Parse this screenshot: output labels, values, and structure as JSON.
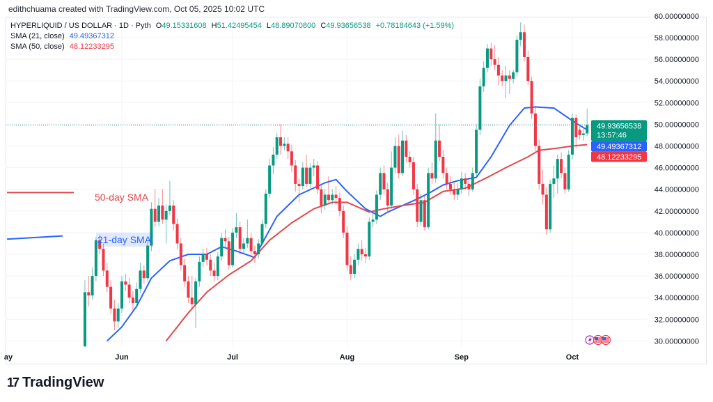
{
  "attribution": "edithchuama created with TradingView.com, Oct 05, 2025 10:02 UTC",
  "legend": {
    "symbol": "HYPERLIQUID / US DOLLAR · 1D · Pyth",
    "open_label": "O",
    "open": "49.15331608",
    "high_label": "H",
    "high": "51.42495454",
    "low_label": "L",
    "low": "48.89070800",
    "close_label": "C",
    "close": "49.93656538",
    "change": "+0.78184643 (+1.59%)",
    "sma21_label": "SMA (21, close)",
    "sma21_value": "49.49367312",
    "sma50_label": "SMA (50, close)",
    "sma50_value": "48.12233295"
  },
  "badges": {
    "last_price": "49.93656538",
    "countdown": "13:57:46",
    "sma21": "49.49367312",
    "sma50": "48.12233295"
  },
  "annotations": {
    "sma50_text": "50-day SMA",
    "sma21_text": "21-day SMA"
  },
  "logo": {
    "mark": "17",
    "text": "TradingView"
  },
  "event_icons": [
    "lightning-icon",
    "us-flag-icon",
    "us-flag-icon"
  ],
  "colors": {
    "up": "#089981",
    "down": "#f23645",
    "sma21": "#2962ff",
    "sma50": "#e0474c",
    "grid": "#f0f3fa"
  },
  "chart_data": {
    "type": "candlestick",
    "title": "HYPERLIQUID / US DOLLAR · 1D · Pyth",
    "ylim": [
      30,
      60
    ],
    "y_ticks": [
      "30.00000000",
      "32.00000000",
      "34.00000000",
      "36.00000000",
      "38.00000000",
      "40.00000000",
      "42.00000000",
      "44.00000000",
      "46.00000000",
      "48.00000000",
      "50.00000000",
      "52.00000000",
      "54.00000000",
      "56.00000000",
      "58.00000000",
      "60.00000000"
    ],
    "x_ticks": [
      {
        "label": "ay",
        "date": "2025-05-01"
      },
      {
        "label": "Jun",
        "date": "2025-06-01"
      },
      {
        "label": "Jul",
        "date": "2025-07-01"
      },
      {
        "label": "Aug",
        "date": "2025-08-01"
      },
      {
        "label": "Sep",
        "date": "2025-09-01"
      },
      {
        "label": "Oct",
        "date": "2025-10-01"
      }
    ],
    "grid": true,
    "candles_fields": [
      "date",
      "open",
      "high",
      "low",
      "close"
    ],
    "candles": [
      [
        "2025-05-22",
        29.5,
        35.6,
        29.3,
        34.5
      ],
      [
        "2025-05-23",
        34.5,
        36.0,
        33.2,
        34.2
      ],
      [
        "2025-05-24",
        34.2,
        36.8,
        33.8,
        36.0
      ],
      [
        "2025-05-25",
        36.0,
        39.6,
        35.5,
        39.3
      ],
      [
        "2025-05-26",
        39.3,
        39.8,
        38.0,
        38.5
      ],
      [
        "2025-05-27",
        38.5,
        39.0,
        36.0,
        36.5
      ],
      [
        "2025-05-28",
        36.5,
        37.2,
        34.5,
        35.0
      ],
      [
        "2025-05-29",
        35.0,
        35.6,
        32.5,
        33.0
      ],
      [
        "2025-05-30",
        33.0,
        33.8,
        31.0,
        31.8
      ],
      [
        "2025-05-31",
        31.8,
        33.5,
        31.2,
        33.0
      ],
      [
        "2025-06-01",
        33.0,
        36.0,
        32.6,
        35.5
      ],
      [
        "2025-06-02",
        35.5,
        36.2,
        34.6,
        35.2
      ],
      [
        "2025-06-03",
        35.2,
        35.8,
        33.5,
        34.0
      ],
      [
        "2025-06-04",
        34.0,
        34.6,
        32.8,
        33.5
      ],
      [
        "2025-06-05",
        33.5,
        35.4,
        33.0,
        34.8
      ],
      [
        "2025-06-06",
        34.8,
        37.2,
        34.4,
        36.5
      ],
      [
        "2025-06-07",
        36.5,
        37.0,
        35.3,
        35.8
      ],
      [
        "2025-06-08",
        35.8,
        39.2,
        35.5,
        38.8
      ],
      [
        "2025-06-09",
        38.8,
        42.8,
        38.3,
        42.2
      ],
      [
        "2025-06-10",
        42.2,
        44.0,
        40.5,
        41.0
      ],
      [
        "2025-06-11",
        41.0,
        43.2,
        40.6,
        42.5
      ],
      [
        "2025-06-12",
        42.5,
        44.0,
        40.8,
        41.2
      ],
      [
        "2025-06-13",
        41.2,
        42.6,
        39.0,
        42.0
      ],
      [
        "2025-06-14",
        42.0,
        44.8,
        41.6,
        42.5
      ],
      [
        "2025-06-15",
        42.5,
        43.0,
        40.2,
        40.8
      ],
      [
        "2025-06-16",
        40.8,
        41.3,
        38.5,
        39.0
      ],
      [
        "2025-06-17",
        39.0,
        39.5,
        36.5,
        37.0
      ],
      [
        "2025-06-18",
        37.0,
        37.6,
        35.0,
        35.5
      ],
      [
        "2025-06-19",
        35.5,
        36.0,
        33.5,
        34.0
      ],
      [
        "2025-06-20",
        34.0,
        36.0,
        33.0,
        33.4
      ],
      [
        "2025-06-21",
        33.4,
        35.8,
        31.2,
        35.5
      ],
      [
        "2025-06-22",
        35.5,
        37.8,
        35.0,
        37.3
      ],
      [
        "2025-06-23",
        37.3,
        38.5,
        36.8,
        38.0
      ],
      [
        "2025-06-24",
        38.0,
        38.6,
        37.0,
        37.5
      ],
      [
        "2025-06-25",
        37.5,
        38.0,
        36.0,
        36.5
      ],
      [
        "2025-06-26",
        36.5,
        37.2,
        35.5,
        36.0
      ],
      [
        "2025-06-27",
        36.0,
        38.2,
        35.6,
        37.8
      ],
      [
        "2025-06-28",
        37.8,
        40.0,
        37.4,
        39.5
      ],
      [
        "2025-06-29",
        39.5,
        40.3,
        38.7,
        39.2
      ],
      [
        "2025-06-30",
        39.2,
        39.6,
        36.6,
        37.0
      ],
      [
        "2025-07-01",
        37.0,
        40.4,
        36.8,
        40.0
      ],
      [
        "2025-07-02",
        40.0,
        41.8,
        39.5,
        40.5
      ],
      [
        "2025-07-03",
        40.5,
        41.0,
        38.0,
        38.5
      ],
      [
        "2025-07-04",
        38.5,
        39.5,
        38.1,
        39.0
      ],
      [
        "2025-07-05",
        39.0,
        41.2,
        38.6,
        39.5
      ],
      [
        "2025-07-06",
        39.5,
        40.0,
        37.8,
        38.3
      ],
      [
        "2025-07-07",
        38.3,
        38.8,
        37.2,
        38.0
      ],
      [
        "2025-07-08",
        38.0,
        39.4,
        37.6,
        39.0
      ],
      [
        "2025-07-09",
        39.0,
        41.2,
        38.8,
        40.8
      ],
      [
        "2025-07-10",
        40.8,
        44.0,
        40.4,
        43.6
      ],
      [
        "2025-07-11",
        43.6,
        46.8,
        43.2,
        46.2
      ],
      [
        "2025-07-12",
        46.2,
        47.9,
        45.4,
        47.2
      ],
      [
        "2025-07-13",
        47.2,
        49.2,
        46.8,
        48.8
      ],
      [
        "2025-07-14",
        48.8,
        50.0,
        47.2,
        48.0
      ],
      [
        "2025-07-15",
        48.0,
        48.8,
        47.6,
        48.2
      ],
      [
        "2025-07-16",
        48.2,
        48.8,
        46.8,
        47.5
      ],
      [
        "2025-07-17",
        47.5,
        48.1,
        45.6,
        46.2
      ],
      [
        "2025-07-18",
        46.2,
        46.7,
        43.8,
        44.5
      ],
      [
        "2025-07-19",
        44.5,
        45.0,
        42.8,
        44.3
      ],
      [
        "2025-07-20",
        44.3,
        46.5,
        44.0,
        46.0
      ],
      [
        "2025-07-21",
        46.0,
        47.2,
        44.2,
        44.5
      ],
      [
        "2025-07-22",
        44.5,
        46.4,
        44.1,
        46.0
      ],
      [
        "2025-07-23",
        46.0,
        46.8,
        45.2,
        46.2
      ],
      [
        "2025-07-24",
        46.2,
        46.6,
        43.6,
        44.0
      ],
      [
        "2025-07-25",
        44.0,
        44.5,
        41.8,
        42.5
      ],
      [
        "2025-07-26",
        42.5,
        44.0,
        42.1,
        43.5
      ],
      [
        "2025-07-27",
        43.5,
        45.2,
        42.6,
        43.0
      ],
      [
        "2025-07-28",
        43.0,
        44.0,
        42.6,
        43.5
      ],
      [
        "2025-07-29",
        43.5,
        44.3,
        42.6,
        43.2
      ],
      [
        "2025-07-30",
        43.2,
        43.7,
        41.5,
        42.0
      ],
      [
        "2025-07-31",
        42.0,
        42.5,
        39.5,
        40.0
      ],
      [
        "2025-08-01",
        40.0,
        40.6,
        36.5,
        37.0
      ],
      [
        "2025-08-02",
        37.0,
        37.8,
        35.6,
        36.2
      ],
      [
        "2025-08-03",
        36.2,
        38.0,
        35.8,
        37.5
      ],
      [
        "2025-08-04",
        37.5,
        39.0,
        37.0,
        38.5
      ],
      [
        "2025-08-05",
        38.5,
        39.3,
        37.4,
        38.0
      ],
      [
        "2025-08-06",
        38.0,
        38.6,
        37.2,
        37.8
      ],
      [
        "2025-08-07",
        37.8,
        41.4,
        37.5,
        41.0
      ],
      [
        "2025-08-08",
        41.0,
        41.8,
        40.5,
        41.2
      ],
      [
        "2025-08-09",
        41.2,
        43.9,
        40.8,
        43.5
      ],
      [
        "2025-08-10",
        43.5,
        46.0,
        43.0,
        45.5
      ],
      [
        "2025-08-11",
        45.5,
        46.2,
        43.5,
        44.0
      ],
      [
        "2025-08-12",
        44.0,
        44.6,
        42.0,
        42.5
      ],
      [
        "2025-08-13",
        42.5,
        47.5,
        42.2,
        46.0
      ],
      [
        "2025-08-14",
        46.0,
        48.8,
        45.5,
        48.0
      ],
      [
        "2025-08-15",
        48.0,
        49.0,
        45.0,
        45.5
      ],
      [
        "2025-08-16",
        45.5,
        49.4,
        45.2,
        48.5
      ],
      [
        "2025-08-17",
        48.5,
        49.0,
        46.5,
        47.0
      ],
      [
        "2025-08-18",
        47.0,
        47.5,
        46.0,
        46.5
      ],
      [
        "2025-08-19",
        46.5,
        47.0,
        43.5,
        44.0
      ],
      [
        "2025-08-20",
        44.0,
        44.5,
        40.5,
        41.0
      ],
      [
        "2025-08-21",
        41.0,
        43.6,
        40.6,
        43.0
      ],
      [
        "2025-08-22",
        43.0,
        43.4,
        40.2,
        40.5
      ],
      [
        "2025-08-23",
        40.5,
        46.0,
        40.3,
        45.5
      ],
      [
        "2025-08-24",
        45.5,
        46.5,
        44.5,
        45.0
      ],
      [
        "2025-08-25",
        45.0,
        51.0,
        44.6,
        48.5
      ],
      [
        "2025-08-26",
        48.5,
        50.0,
        46.6,
        47.0
      ],
      [
        "2025-08-27",
        47.0,
        47.6,
        45.0,
        45.5
      ],
      [
        "2025-08-28",
        45.5,
        46.0,
        44.0,
        44.5
      ],
      [
        "2025-08-29",
        44.5,
        45.2,
        43.5,
        44.0
      ],
      [
        "2025-08-30",
        44.0,
        44.6,
        43.0,
        43.5
      ],
      [
        "2025-08-31",
        43.5,
        44.6,
        43.0,
        44.0
      ],
      [
        "2025-09-01",
        44.0,
        45.6,
        43.6,
        45.0
      ],
      [
        "2025-09-02",
        45.0,
        45.5,
        44.0,
        44.5
      ],
      [
        "2025-09-03",
        44.5,
        45.0,
        43.4,
        44.0
      ],
      [
        "2025-09-04",
        44.0,
        46.0,
        43.8,
        45.5
      ],
      [
        "2025-09-05",
        45.5,
        50.0,
        45.2,
        49.5
      ],
      [
        "2025-09-06",
        49.5,
        54.2,
        49.0,
        53.5
      ],
      [
        "2025-09-07",
        53.5,
        55.8,
        53.0,
        55.2
      ],
      [
        "2025-09-08",
        55.2,
        57.4,
        54.8,
        57.0
      ],
      [
        "2025-09-09",
        57.0,
        57.5,
        55.4,
        56.0
      ],
      [
        "2025-09-10",
        56.0,
        57.3,
        55.0,
        55.5
      ],
      [
        "2025-09-11",
        55.5,
        56.2,
        53.6,
        54.5
      ],
      [
        "2025-09-12",
        54.5,
        55.0,
        53.5,
        54.0
      ],
      [
        "2025-09-13",
        54.0,
        55.4,
        52.4,
        54.5
      ],
      [
        "2025-09-14",
        54.5,
        55.0,
        52.8,
        54.2
      ],
      [
        "2025-09-15",
        54.2,
        55.0,
        53.8,
        54.8
      ],
      [
        "2025-09-16",
        54.8,
        58.2,
        54.4,
        57.8
      ],
      [
        "2025-09-17",
        57.8,
        59.4,
        57.2,
        58.5
      ],
      [
        "2025-09-18",
        58.5,
        59.2,
        55.8,
        56.2
      ],
      [
        "2025-09-19",
        56.2,
        56.8,
        53.6,
        54.0
      ],
      [
        "2025-09-20",
        54.0,
        54.4,
        50.5,
        51.0
      ],
      [
        "2025-09-21",
        51.0,
        51.5,
        47.5,
        48.0
      ],
      [
        "2025-09-22",
        48.0,
        48.6,
        44.0,
        44.5
      ],
      [
        "2025-09-23",
        44.5,
        45.8,
        42.6,
        43.5
      ],
      [
        "2025-09-24",
        43.5,
        44.2,
        39.8,
        40.3
      ],
      [
        "2025-09-25",
        40.3,
        44.9,
        40.0,
        44.5
      ],
      [
        "2025-09-26",
        44.5,
        46.2,
        43.2,
        45.0
      ],
      [
        "2025-09-27",
        45.0,
        47.2,
        43.6,
        46.8
      ],
      [
        "2025-09-28",
        46.8,
        47.4,
        45.0,
        45.5
      ],
      [
        "2025-09-29",
        45.5,
        46.0,
        43.6,
        44.0
      ],
      [
        "2025-09-30",
        44.0,
        47.6,
        43.8,
        47.2
      ],
      [
        "2025-10-01",
        47.2,
        51.0,
        46.8,
        50.6
      ],
      [
        "2025-10-02",
        50.6,
        50.9,
        47.8,
        48.8
      ],
      [
        "2025-10-03",
        49.5,
        49.8,
        48.6,
        49.0
      ],
      [
        "2025-10-04",
        49.0,
        49.6,
        48.5,
        49.15
      ],
      [
        "2025-10-05",
        49.15331608,
        51.42495454,
        48.890708,
        49.93656538
      ]
    ],
    "series": [
      {
        "name": "SMA (21, close)",
        "points": [
          [
            "2025-05-28",
            30.0
          ],
          [
            "2025-06-01",
            31.3
          ],
          [
            "2025-06-05",
            33.2
          ],
          [
            "2025-06-09",
            35.8
          ],
          [
            "2025-06-14",
            37.4
          ],
          [
            "2025-06-19",
            38.0
          ],
          [
            "2025-06-24",
            38.0
          ],
          [
            "2025-06-28",
            38.7
          ],
          [
            "2025-07-02",
            38.3
          ],
          [
            "2025-07-07",
            37.7
          ],
          [
            "2025-07-09",
            39.0
          ],
          [
            "2025-07-13",
            41.5
          ],
          [
            "2025-07-19",
            43.5
          ],
          [
            "2025-07-26",
            44.6
          ],
          [
            "2025-07-29",
            44.9
          ],
          [
            "2025-08-01",
            43.8
          ],
          [
            "2025-08-06",
            42.2
          ],
          [
            "2025-08-10",
            41.5
          ],
          [
            "2025-08-12",
            41.9
          ],
          [
            "2025-08-16",
            42.5
          ],
          [
            "2025-08-20",
            43.1
          ],
          [
            "2025-08-24",
            43.8
          ],
          [
            "2025-08-27",
            44.4
          ],
          [
            "2025-08-31",
            44.8
          ],
          [
            "2025-09-05",
            45.1
          ],
          [
            "2025-09-09",
            47.0
          ],
          [
            "2025-09-14",
            49.9
          ],
          [
            "2025-09-18",
            51.5
          ],
          [
            "2025-09-21",
            51.6
          ],
          [
            "2025-09-26",
            51.5
          ],
          [
            "2025-09-29",
            50.8
          ],
          [
            "2025-10-02",
            50.1
          ],
          [
            "2025-10-05",
            49.49367312
          ]
        ]
      },
      {
        "name": "SMA (50, close)",
        "points": [
          [
            "2025-06-13",
            30.0
          ],
          [
            "2025-06-19",
            32.6
          ],
          [
            "2025-06-24",
            34.5
          ],
          [
            "2025-06-30",
            36.1
          ],
          [
            "2025-07-06",
            37.4
          ],
          [
            "2025-07-11",
            39.3
          ],
          [
            "2025-07-17",
            40.9
          ],
          [
            "2025-07-23",
            42.2
          ],
          [
            "2025-07-28",
            42.8
          ],
          [
            "2025-08-01",
            42.8
          ],
          [
            "2025-08-07",
            41.9
          ],
          [
            "2025-08-11",
            42.2
          ],
          [
            "2025-08-16",
            42.5
          ],
          [
            "2025-08-22",
            42.8
          ],
          [
            "2025-08-27",
            43.8
          ],
          [
            "2025-09-02",
            44.1
          ],
          [
            "2025-09-08",
            45.1
          ],
          [
            "2025-09-13",
            46.0
          ],
          [
            "2025-09-19",
            47.0
          ],
          [
            "2025-09-22",
            47.6
          ],
          [
            "2025-09-27",
            47.8
          ],
          [
            "2025-10-01",
            48.0
          ],
          [
            "2025-10-05",
            48.12233295
          ]
        ]
      }
    ],
    "drawings": [
      {
        "type": "horizontal-line",
        "color": "#e0474c",
        "price": 43.7
      },
      {
        "type": "trend-line",
        "color": "#2962ff",
        "from_price": 39.4,
        "to_price": 39.7
      }
    ]
  }
}
